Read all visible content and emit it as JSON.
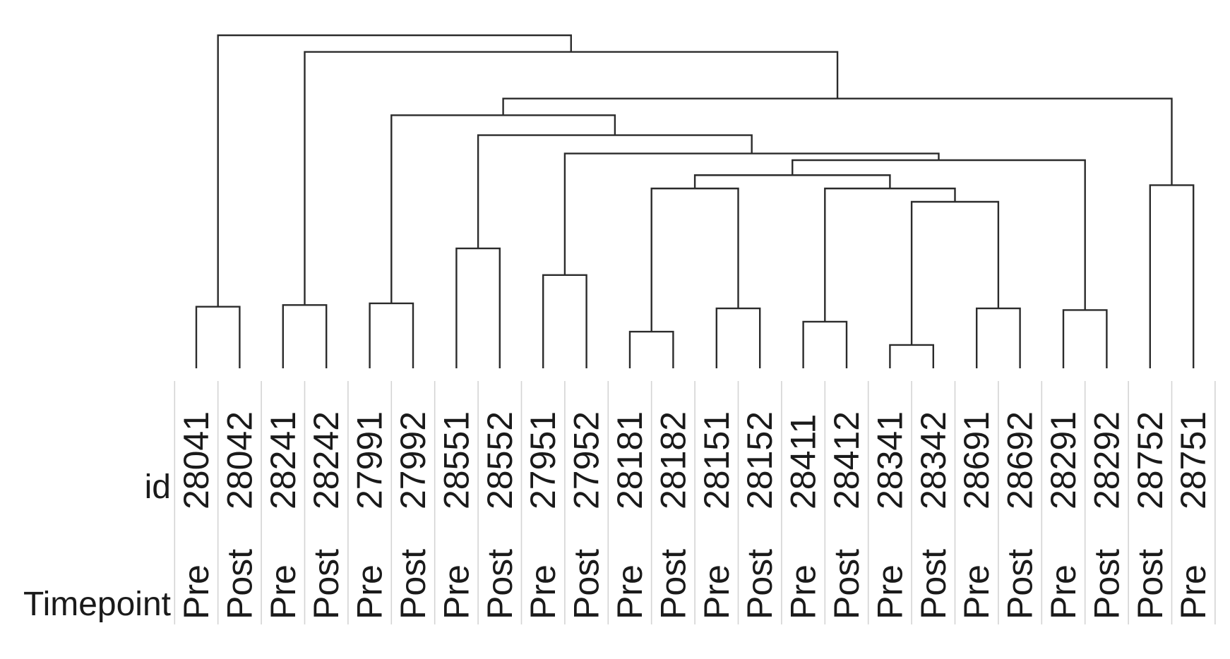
{
  "row_labels": {
    "id": "id",
    "timepoint": "Timepoint"
  },
  "leaves": [
    {
      "id": "28041",
      "timepoint": "Pre"
    },
    {
      "id": "28042",
      "timepoint": "Post"
    },
    {
      "id": "28241",
      "timepoint": "Pre"
    },
    {
      "id": "28242",
      "timepoint": "Post"
    },
    {
      "id": "27991",
      "timepoint": "Pre"
    },
    {
      "id": "27992",
      "timepoint": "Post"
    },
    {
      "id": "28551",
      "timepoint": "Pre"
    },
    {
      "id": "28552",
      "timepoint": "Post"
    },
    {
      "id": "27951",
      "timepoint": "Pre"
    },
    {
      "id": "27952",
      "timepoint": "Post"
    },
    {
      "id": "28181",
      "timepoint": "Pre"
    },
    {
      "id": "28182",
      "timepoint": "Post"
    },
    {
      "id": "28151",
      "timepoint": "Pre"
    },
    {
      "id": "28152",
      "timepoint": "Post"
    },
    {
      "id": "28411",
      "timepoint": "Pre"
    },
    {
      "id": "28412",
      "timepoint": "Post"
    },
    {
      "id": "28341",
      "timepoint": "Pre"
    },
    {
      "id": "28342",
      "timepoint": "Post"
    },
    {
      "id": "28691",
      "timepoint": "Pre"
    },
    {
      "id": "28692",
      "timepoint": "Post"
    },
    {
      "id": "28291",
      "timepoint": "Pre"
    },
    {
      "id": "28292",
      "timepoint": "Post"
    },
    {
      "id": "28752",
      "timepoint": "Post"
    },
    {
      "id": "28751",
      "timepoint": "Pre"
    }
  ],
  "merges": [
    {
      "name": "merge-28041-28042",
      "left": 0,
      "right": 1,
      "height": 0.185
    },
    {
      "name": "merge-28241-28242",
      "left": 2,
      "right": 3,
      "height": 0.19
    },
    {
      "name": "merge-27991-27992",
      "left": 4,
      "right": 5,
      "height": 0.195
    },
    {
      "name": "merge-28551-28552",
      "left": 6,
      "right": 7,
      "height": 0.36
    },
    {
      "name": "merge-27951-27952",
      "left": 8,
      "right": 9,
      "height": 0.28
    },
    {
      "name": "merge-28181-28182",
      "left": 10,
      "right": 11,
      "height": 0.11
    },
    {
      "name": "merge-28151-28152",
      "left": 12,
      "right": 13,
      "height": 0.18
    },
    {
      "name": "merge-28411-28412",
      "left": 14,
      "right": 15,
      "height": 0.14
    },
    {
      "name": "merge-28341-28342",
      "left": 16,
      "right": 17,
      "height": 0.07
    },
    {
      "name": "merge-28691-28692",
      "left": 18,
      "right": 19,
      "height": 0.18
    },
    {
      "name": "merge-28291-28292",
      "left": 20,
      "right": 21,
      "height": 0.175
    },
    {
      "name": "merge-28752-28751",
      "left": 22,
      "right": 23,
      "height": 0.55
    },
    {
      "name": "merge-28341-group-28691-group",
      "left": 32,
      "right": 33,
      "height": 0.5
    },
    {
      "name": "merge-28411-group-higher",
      "left": 31,
      "right": 36,
      "height": 0.54
    },
    {
      "name": "merge-28181-group-28151-group",
      "left": 29,
      "right": 30,
      "height": 0.54
    },
    {
      "name": "merge-pair-groups",
      "left": 38,
      "right": 37,
      "height": 0.58
    },
    {
      "name": "merge-with-28291-group",
      "left": 39,
      "right": 34,
      "height": 0.625
    },
    {
      "name": "merge-with-27951-group",
      "left": 28,
      "right": 40,
      "height": 0.645
    },
    {
      "name": "merge-with-28551-group",
      "left": 27,
      "right": 41,
      "height": 0.7
    },
    {
      "name": "merge-with-27991-group",
      "left": 26,
      "right": 42,
      "height": 0.76
    },
    {
      "name": "merge-with-28752-group",
      "left": 43,
      "right": 35,
      "height": 0.81
    },
    {
      "name": "merge-with-28241-group",
      "left": 25,
      "right": 44,
      "height": 0.95
    },
    {
      "name": "merge-root",
      "left": 24,
      "right": 45,
      "height": 1.0
    }
  ]
}
